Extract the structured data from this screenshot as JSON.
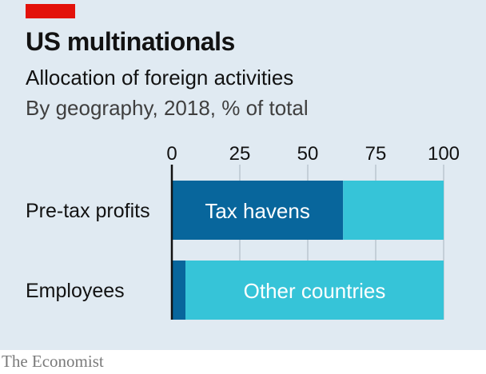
{
  "header": {
    "title": "US multinationals",
    "subtitle": "Allocation of foreign activities",
    "subsubtitle": "By geography, 2018, % of total"
  },
  "source": "The Economist",
  "colors": {
    "background": "#e0eaf2",
    "accent_red": "#e3120b",
    "tax_havens": "#08669c",
    "other_countries": "#36c4d8",
    "grid": "#a9b4bd"
  },
  "chart_data": {
    "type": "bar",
    "orientation": "horizontal",
    "stacked": true,
    "categories": [
      "Pre-tax profits",
      "Employees"
    ],
    "series": [
      {
        "name": "Tax havens",
        "values": [
          63,
          5
        ]
      },
      {
        "name": "Other countries",
        "values": [
          37,
          95
        ]
      }
    ],
    "series_label_on_bar": [
      "Pre-tax profits",
      "Employees"
    ],
    "xlim": [
      0,
      100
    ],
    "xticks": [
      0,
      25,
      50,
      75,
      100
    ],
    "grid": true,
    "xaxis_position": "top"
  }
}
